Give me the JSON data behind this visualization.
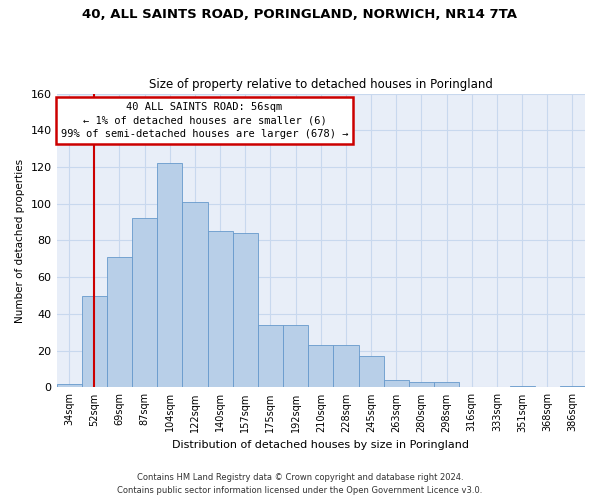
{
  "title_line1": "40, ALL SAINTS ROAD, PORINGLAND, NORWICH, NR14 7TA",
  "title_line2": "Size of property relative to detached houses in Poringland",
  "xlabel": "Distribution of detached houses by size in Poringland",
  "ylabel": "Number of detached properties",
  "categories": [
    "34sqm",
    "52sqm",
    "69sqm",
    "87sqm",
    "104sqm",
    "122sqm",
    "140sqm",
    "157sqm",
    "175sqm",
    "192sqm",
    "210sqm",
    "228sqm",
    "245sqm",
    "263sqm",
    "280sqm",
    "298sqm",
    "316sqm",
    "333sqm",
    "351sqm",
    "368sqm",
    "386sqm"
  ],
  "values": [
    2,
    50,
    71,
    92,
    122,
    101,
    85,
    84,
    34,
    34,
    23,
    23,
    17,
    4,
    3,
    3,
    0,
    0,
    1,
    0,
    1
  ],
  "bar_color": "#b8cfe8",
  "bar_edge_color": "#6699cc",
  "annotation_text_line1": "40 ALL SAINTS ROAD: 56sqm",
  "annotation_text_line2": "← 1% of detached houses are smaller (6)",
  "annotation_text_line3": "99% of semi-detached houses are larger (678) →",
  "annotation_box_facecolor": "#ffffff",
  "annotation_box_edgecolor": "#cc0000",
  "vline_color": "#cc0000",
  "vline_x": 1,
  "grid_color": "#c8d8ee",
  "background_color": "#e8eef8",
  "ylim": [
    0,
    160
  ],
  "yticks": [
    0,
    20,
    40,
    60,
    80,
    100,
    120,
    140,
    160
  ],
  "footer_line1": "Contains HM Land Registry data © Crown copyright and database right 2024.",
  "footer_line2": "Contains public sector information licensed under the Open Government Licence v3.0."
}
